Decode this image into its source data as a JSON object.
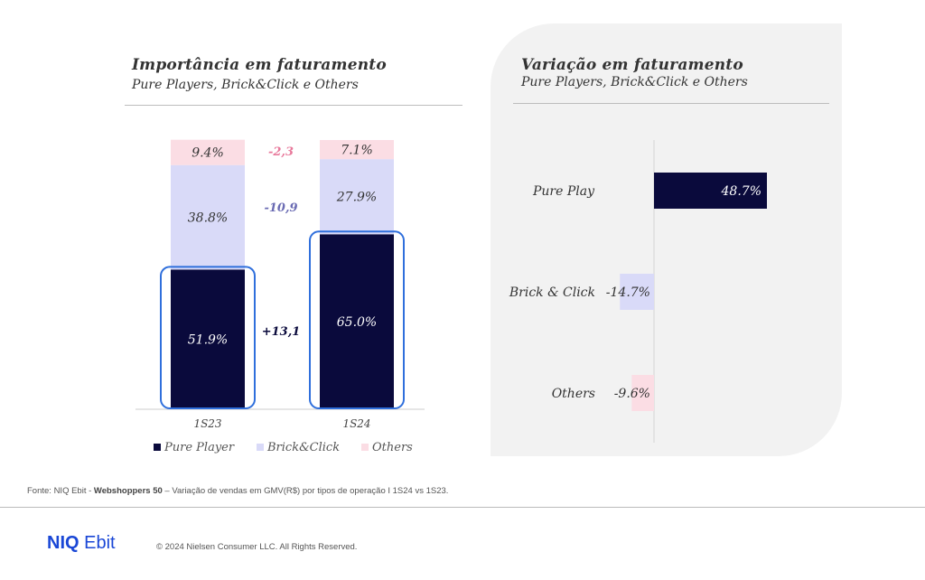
{
  "left_title": "Importância  em faturamento",
  "left_subtitle": "Pure Players, Brick&Click e Others",
  "right_title": "Variação em faturamento",
  "right_subtitle": "Pure Players, Brick&Click e Others",
  "colors": {
    "pure_player": "#0a0a3c",
    "brick_click": "#d9daf8",
    "others": "#fbdde4",
    "highlight": "#2f6fdc",
    "delta_others": "#e8799b",
    "delta_brick": "#6a6bb3",
    "delta_pure": "#0a0a3c"
  },
  "chart_data": [
    {
      "type": "bar",
      "stacked": true,
      "categories": [
        "1S23",
        "1S24"
      ],
      "series": [
        {
          "name": "Pure Player",
          "values": [
            51.9,
            65.0
          ],
          "labels": [
            "51.9%",
            "65.0%"
          ]
        },
        {
          "name": "Brick&Click",
          "values": [
            38.8,
            27.9
          ],
          "labels": [
            "38.8%",
            "27.9%"
          ]
        },
        {
          "name": "Others",
          "values": [
            9.4,
            7.1
          ],
          "labels": [
            "9.4%",
            "7.1%"
          ]
        }
      ],
      "annotations": [
        {
          "series": "Others",
          "text": "-2,3"
        },
        {
          "series": "Brick&Click",
          "text": "-10,9"
        },
        {
          "series": "Pure Player",
          "text": "+13,1"
        }
      ],
      "ylim": [
        0,
        100
      ],
      "legend": "bottom"
    },
    {
      "type": "bar",
      "orientation": "horizontal",
      "categories": [
        "Pure Play",
        "Brick & Click",
        "Others"
      ],
      "values": [
        48.7,
        -14.7,
        -9.6
      ],
      "labels": [
        "48.7%",
        "-14.7%",
        "-9.6%"
      ]
    }
  ],
  "footer": {
    "source_prefix": "Fonte: NIQ Ebit - ",
    "source_bold": "Webshoppers 50",
    "source_rest": " – Variação de vendas em GMV(R$)  por tipos de operação I 1S24 vs 1S23.",
    "logo_a": "NIQ",
    "logo_b": " Ebit",
    "copyright": "© 2024 Nielsen Consumer LLC. All Rights Reserved."
  }
}
